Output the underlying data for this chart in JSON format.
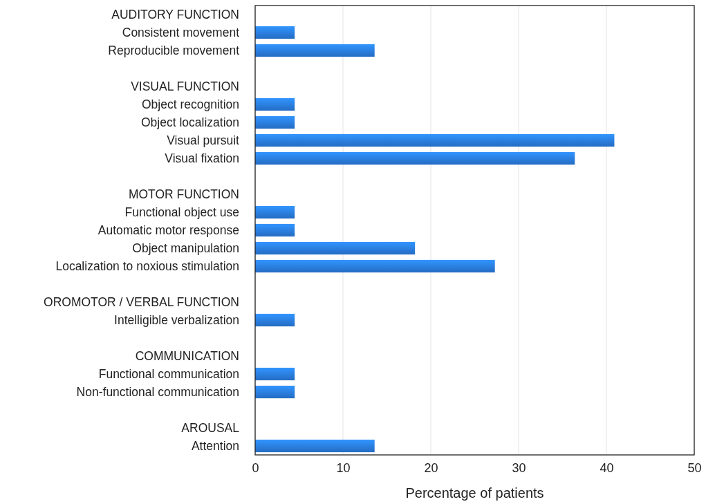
{
  "chart_data": {
    "type": "bar",
    "orientation": "horizontal",
    "xlabel": "Percentage of patients",
    "categories": [
      "AUDITORY FUNCTION",
      "Consistent movement",
      "Reproducible movement",
      null,
      "VISUAL FUNCTION",
      "Object recognition",
      "Object localization",
      "Visual pursuit",
      "Visual fixation",
      null,
      "MOTOR FUNCTION",
      "Functional object use",
      "Automatic motor response",
      "Object manipulation",
      "Localization to noxious stimulation",
      null,
      "OROMOTOR / VERBAL FUNCTION",
      "Intelligible verbalization",
      null,
      "COMMUNICATION",
      "Functional communication",
      "Non-functional communication",
      null,
      "AROUSAL",
      "Attention"
    ],
    "values": [
      null,
      4.5,
      13.6,
      null,
      null,
      4.5,
      4.5,
      40.9,
      36.4,
      null,
      null,
      4.5,
      4.5,
      18.2,
      27.3,
      null,
      null,
      4.5,
      null,
      null,
      4.5,
      4.5,
      null,
      null,
      13.6
    ],
    "color": "#2a7de1",
    "xlim": [
      0,
      50
    ],
    "xticks": [
      0,
      10,
      20,
      30,
      40,
      50
    ],
    "grid": "x"
  }
}
